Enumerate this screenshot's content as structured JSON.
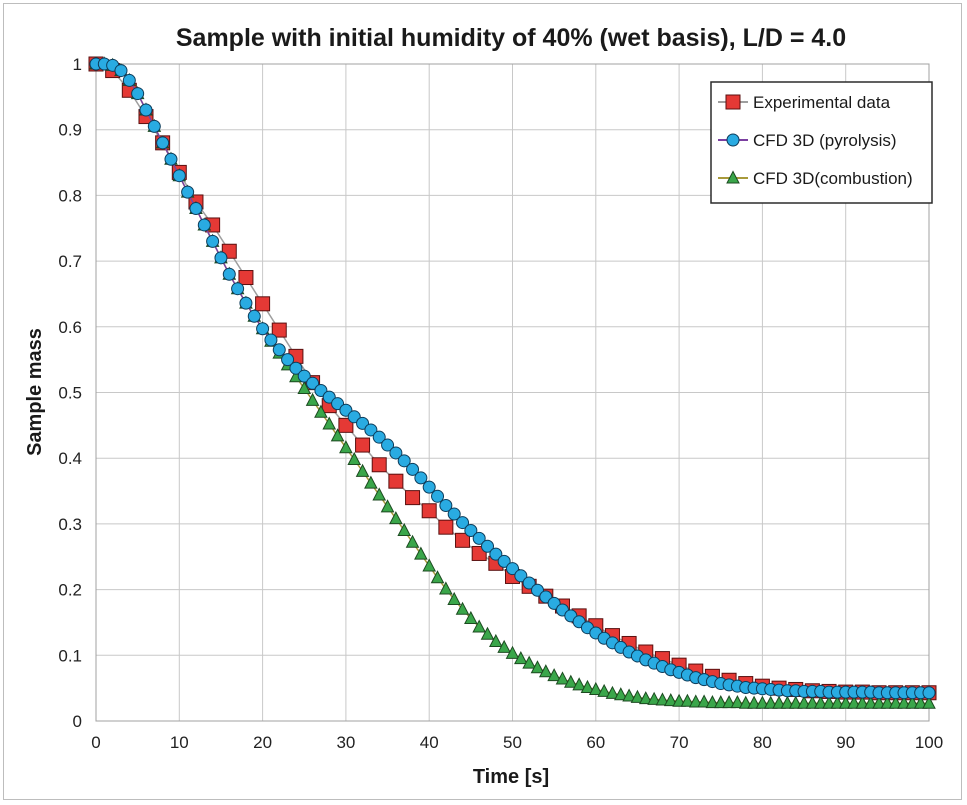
{
  "chart_data": {
    "type": "line",
    "title": "Sample with initial humidity of 40% (wet basis), L/D = 4.0",
    "xlabel": "Time [s]",
    "ylabel": "Sample mass",
    "xlim": [
      0,
      100
    ],
    "ylim": [
      0,
      1
    ],
    "xticks": [
      0,
      10,
      20,
      30,
      40,
      50,
      60,
      70,
      80,
      90,
      100
    ],
    "yticks": [
      0,
      0.1,
      0.2,
      0.3,
      0.4,
      0.5,
      0.6,
      0.7,
      0.8,
      0.9,
      1
    ],
    "ytick_labels": [
      "0",
      "0.1",
      "0.2",
      "0.3",
      "0.4",
      "0.5",
      "0.6",
      "0.7",
      "0.8",
      "0.9",
      "1"
    ],
    "grid": true,
    "legend_position": "top-right",
    "series": [
      {
        "name": "Experimental data",
        "marker": "square",
        "color": "#e53935",
        "line_color": "#9e9e9e",
        "x": [
          0,
          2,
          4,
          6,
          8,
          10,
          12,
          14,
          16,
          18,
          20,
          22,
          24,
          26,
          28,
          30,
          32,
          34,
          36,
          38,
          40,
          42,
          44,
          46,
          48,
          50,
          52,
          54,
          56,
          58,
          60,
          62,
          64,
          66,
          68,
          70,
          72,
          74,
          76,
          78,
          80,
          82,
          84,
          86,
          88,
          90,
          92,
          94,
          96,
          98,
          100
        ],
        "y": [
          1.0,
          0.99,
          0.96,
          0.92,
          0.88,
          0.835,
          0.79,
          0.755,
          0.715,
          0.675,
          0.635,
          0.595,
          0.555,
          0.515,
          0.48,
          0.45,
          0.42,
          0.39,
          0.365,
          0.34,
          0.32,
          0.295,
          0.275,
          0.255,
          0.24,
          0.22,
          0.205,
          0.19,
          0.175,
          0.16,
          0.145,
          0.13,
          0.118,
          0.105,
          0.095,
          0.085,
          0.076,
          0.068,
          0.062,
          0.057,
          0.053,
          0.05,
          0.048,
          0.046,
          0.045,
          0.044,
          0.044,
          0.043,
          0.043,
          0.043,
          0.043
        ]
      },
      {
        "name": "CFD 3D (pyrolysis)",
        "marker": "circle",
        "color": "#29abe2",
        "line_color": "#7b3fa0",
        "x": [
          0,
          1,
          2,
          3,
          4,
          5,
          6,
          7,
          8,
          9,
          10,
          11,
          12,
          13,
          14,
          15,
          16,
          17,
          18,
          19,
          20,
          21,
          22,
          23,
          24,
          25,
          26,
          27,
          28,
          29,
          30,
          31,
          32,
          33,
          34,
          35,
          36,
          37,
          38,
          39,
          40,
          41,
          42,
          43,
          44,
          45,
          46,
          47,
          48,
          49,
          50,
          51,
          52,
          53,
          54,
          55,
          56,
          57,
          58,
          59,
          60,
          61,
          62,
          63,
          64,
          65,
          66,
          67,
          68,
          69,
          70,
          71,
          72,
          73,
          74,
          75,
          76,
          77,
          78,
          79,
          80,
          81,
          82,
          83,
          84,
          85,
          86,
          87,
          88,
          89,
          90,
          91,
          92,
          93,
          94,
          95,
          96,
          97,
          98,
          99,
          100
        ],
        "y": [
          1.0,
          1.0,
          0.998,
          0.99,
          0.975,
          0.955,
          0.93,
          0.905,
          0.88,
          0.855,
          0.83,
          0.805,
          0.78,
          0.755,
          0.73,
          0.705,
          0.68,
          0.658,
          0.636,
          0.616,
          0.597,
          0.58,
          0.565,
          0.55,
          0.537,
          0.525,
          0.514,
          0.503,
          0.493,
          0.483,
          0.473,
          0.463,
          0.453,
          0.443,
          0.432,
          0.42,
          0.408,
          0.396,
          0.383,
          0.37,
          0.356,
          0.342,
          0.328,
          0.315,
          0.302,
          0.29,
          0.278,
          0.266,
          0.254,
          0.243,
          0.232,
          0.221,
          0.21,
          0.199,
          0.189,
          0.179,
          0.169,
          0.16,
          0.151,
          0.142,
          0.134,
          0.126,
          0.119,
          0.112,
          0.105,
          0.099,
          0.093,
          0.088,
          0.083,
          0.078,
          0.074,
          0.07,
          0.066,
          0.063,
          0.06,
          0.057,
          0.055,
          0.053,
          0.051,
          0.05,
          0.049,
          0.048,
          0.047,
          0.046,
          0.046,
          0.045,
          0.045,
          0.045,
          0.044,
          0.044,
          0.044,
          0.044,
          0.044,
          0.044,
          0.043,
          0.043,
          0.043,
          0.043,
          0.043,
          0.043,
          0.043
        ]
      },
      {
        "name": "CFD 3D(combustion)",
        "marker": "triangle",
        "color": "#3aa64a",
        "line_color": "#a89a3b",
        "x": [
          0,
          1,
          2,
          3,
          4,
          5,
          6,
          7,
          8,
          9,
          10,
          11,
          12,
          13,
          14,
          15,
          16,
          17,
          18,
          19,
          20,
          21,
          22,
          23,
          24,
          25,
          26,
          27,
          28,
          29,
          30,
          31,
          32,
          33,
          34,
          35,
          36,
          37,
          38,
          39,
          40,
          41,
          42,
          43,
          44,
          45,
          46,
          47,
          48,
          49,
          50,
          51,
          52,
          53,
          54,
          55,
          56,
          57,
          58,
          59,
          60,
          61,
          62,
          63,
          64,
          65,
          66,
          67,
          68,
          69,
          70,
          71,
          72,
          73,
          74,
          75,
          76,
          77,
          78,
          79,
          80,
          81,
          82,
          83,
          84,
          85,
          86,
          87,
          88,
          89,
          90,
          91,
          92,
          93,
          94,
          95,
          96,
          97,
          98,
          99,
          100
        ],
        "y": [
          1.0,
          1.0,
          0.998,
          0.99,
          0.975,
          0.955,
          0.93,
          0.905,
          0.88,
          0.855,
          0.83,
          0.805,
          0.78,
          0.755,
          0.73,
          0.705,
          0.68,
          0.658,
          0.636,
          0.616,
          0.597,
          0.578,
          0.56,
          0.542,
          0.524,
          0.506,
          0.488,
          0.47,
          0.452,
          0.434,
          0.416,
          0.398,
          0.38,
          0.362,
          0.344,
          0.326,
          0.308,
          0.29,
          0.272,
          0.254,
          0.236,
          0.218,
          0.201,
          0.185,
          0.17,
          0.156,
          0.143,
          0.132,
          0.121,
          0.112,
          0.103,
          0.095,
          0.088,
          0.081,
          0.075,
          0.069,
          0.064,
          0.059,
          0.055,
          0.051,
          0.048,
          0.045,
          0.042,
          0.04,
          0.038,
          0.036,
          0.034,
          0.033,
          0.032,
          0.031,
          0.03,
          0.03,
          0.029,
          0.029,
          0.028,
          0.028,
          0.028,
          0.028,
          0.027,
          0.027,
          0.027,
          0.027,
          0.027,
          0.027,
          0.027,
          0.027,
          0.027,
          0.027,
          0.027,
          0.027,
          0.027,
          0.027,
          0.027,
          0.027,
          0.027,
          0.027,
          0.027,
          0.027,
          0.027,
          0.027,
          0.027
        ]
      }
    ]
  }
}
